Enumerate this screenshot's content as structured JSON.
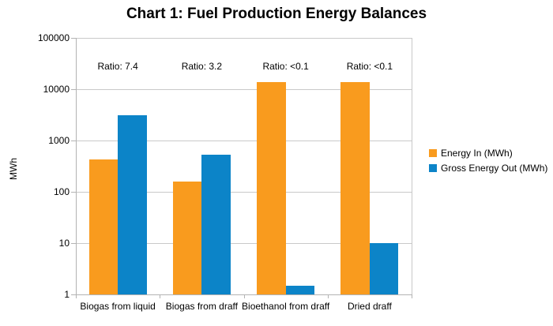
{
  "chart_data": {
    "type": "bar",
    "title": "Chart 1: Fuel Production Energy Balances",
    "xlabel": "",
    "ylabel": "MWh",
    "y_scale": "log",
    "ylim": [
      1,
      100000
    ],
    "y_ticks": [
      100000,
      10000,
      1000,
      100,
      10,
      1
    ],
    "grid": true,
    "legend_position": "right",
    "categories": [
      "Biogas from liquid",
      "Biogas from draff",
      "Bioethanol from draff",
      "Dried draff"
    ],
    "series": [
      {
        "name": "Energy In (MWh)",
        "color": "#F99B1E",
        "values": [
          420,
          160,
          14000,
          14000
        ]
      },
      {
        "name": "Gross Energy Out (MWh)",
        "color": "#0C84C8",
        "values": [
          3100,
          520,
          1.5,
          10
        ]
      }
    ],
    "annotations": [
      {
        "label": "Ratio: 7.4"
      },
      {
        "label": "Ratio: 3.2"
      },
      {
        "label": "Ratio: <0.1"
      },
      {
        "label": "Ratio: <0.1"
      }
    ]
  }
}
